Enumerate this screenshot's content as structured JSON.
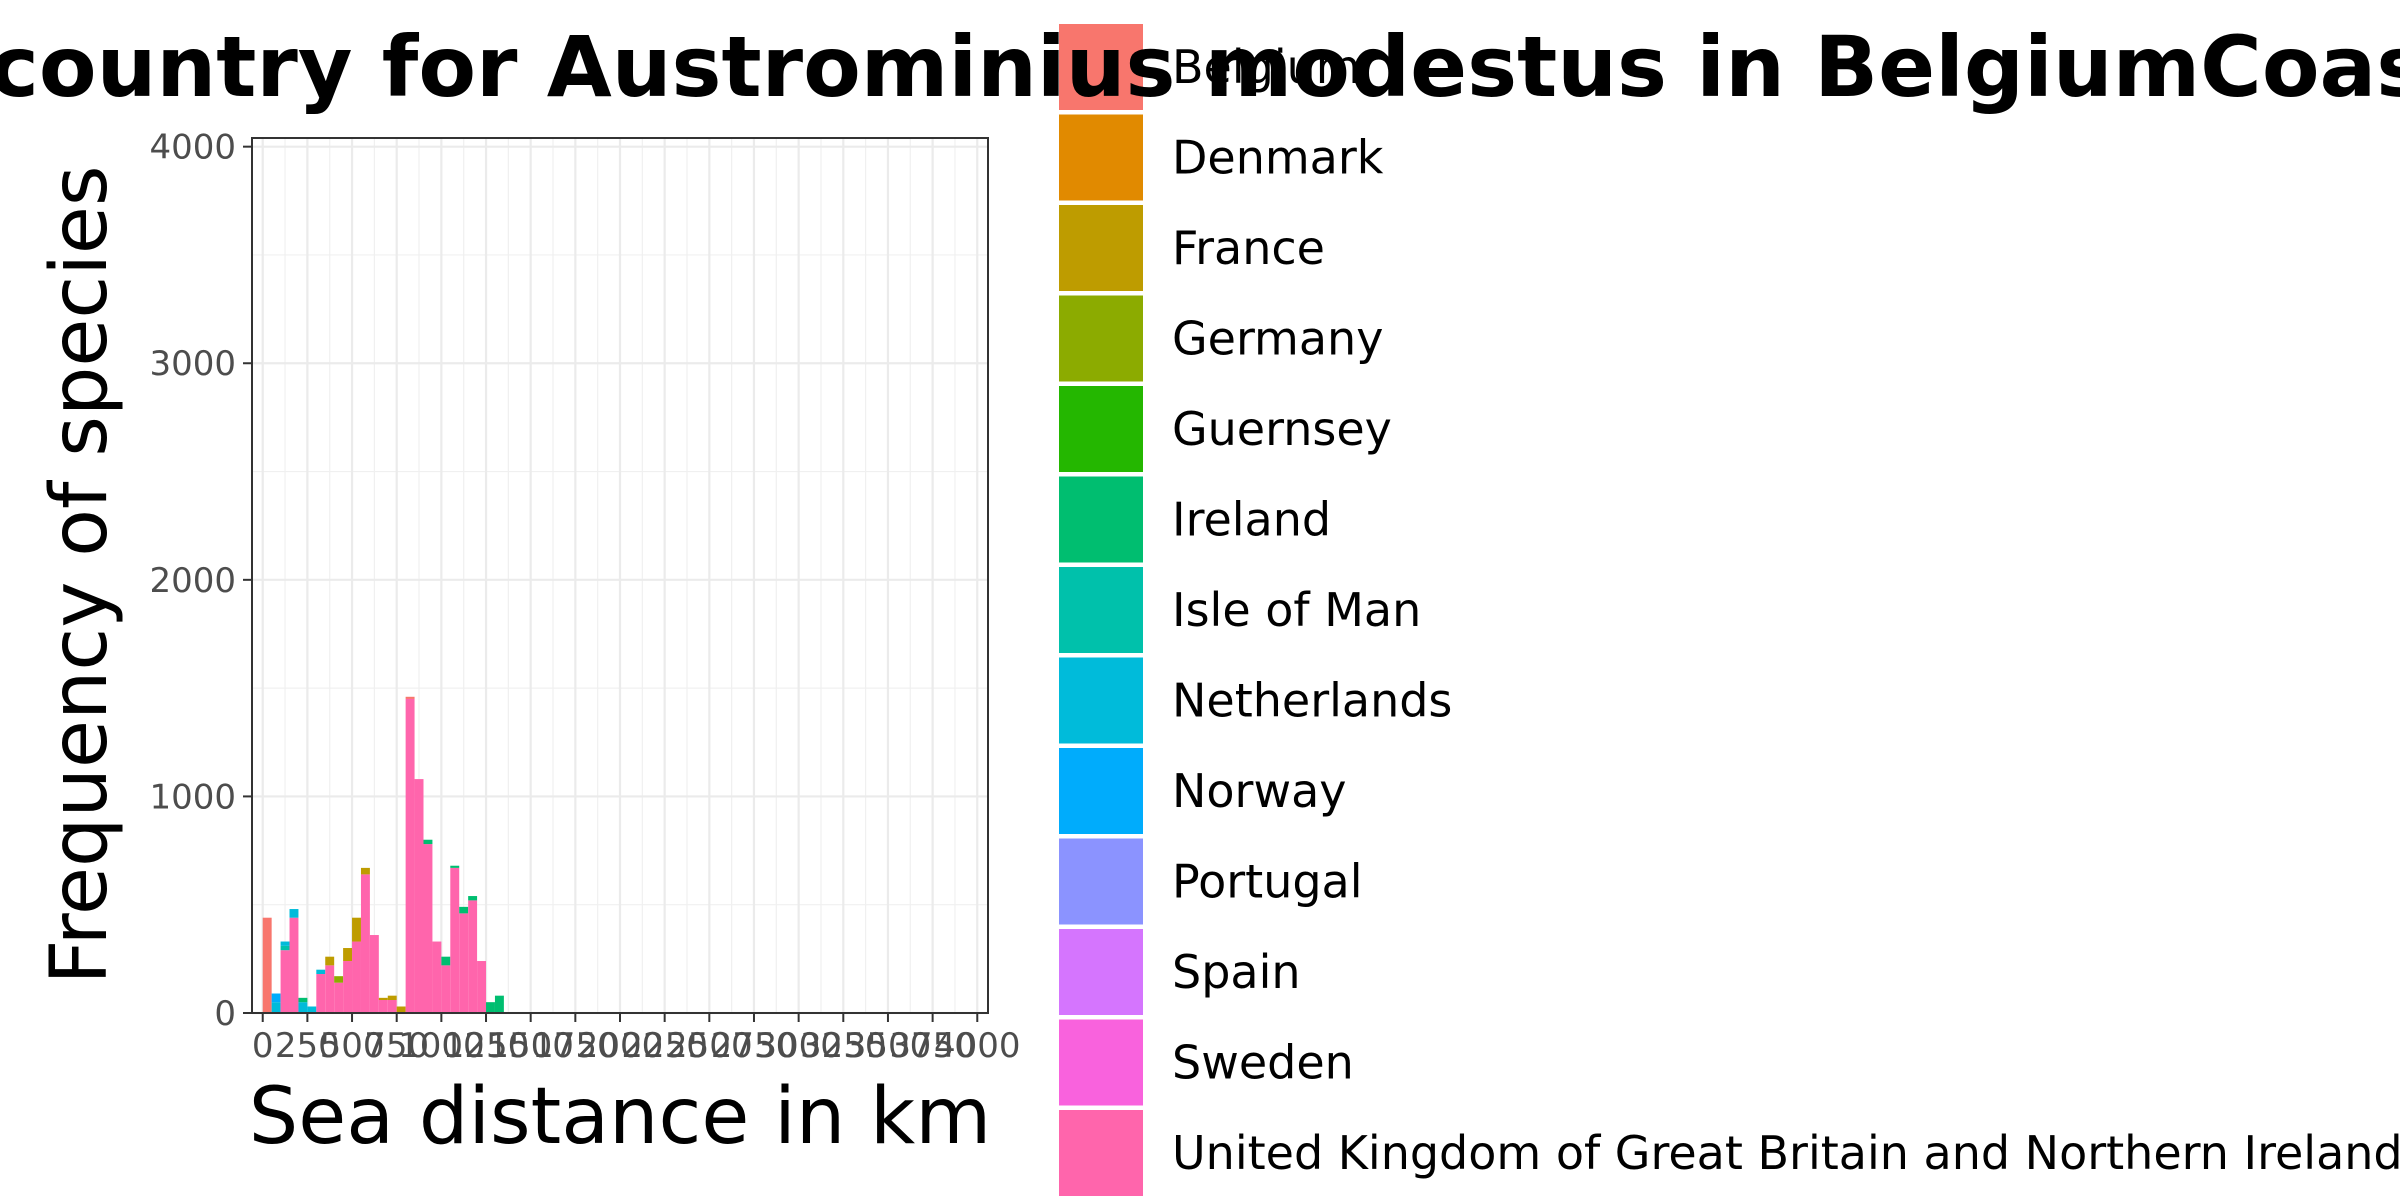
{
  "chart_data": {
    "type": "bar",
    "stacked": true,
    "title": "ces/country for Austrominius modestus in BelgiumCoast",
    "xlabel": "Sea distance in km",
    "ylabel": "Frequency of species",
    "xlim": [
      0,
      4000
    ],
    "ylim": [
      0,
      4000
    ],
    "x_ticks": [
      0,
      250,
      500,
      750,
      1000,
      1250,
      1500,
      1750,
      2000,
      2250,
      2500,
      2750,
      3000,
      3250,
      3500,
      3750,
      4000
    ],
    "y_ticks": [
      0,
      1000,
      2000,
      3000,
      4000
    ],
    "bin_width": 50,
    "grid": true,
    "legend_position": "right",
    "legend": [
      {
        "label": "Belgium",
        "color": "#F8766D"
      },
      {
        "label": "Denmark",
        "color": "#E18A00"
      },
      {
        "label": "France",
        "color": "#BE9C00"
      },
      {
        "label": "Germany",
        "color": "#8CAB00"
      },
      {
        "label": "Guernsey",
        "color": "#24B700"
      },
      {
        "label": "Ireland",
        "color": "#00BE70"
      },
      {
        "label": "Isle of Man",
        "color": "#00C1AB"
      },
      {
        "label": "Netherlands",
        "color": "#00BBDA"
      },
      {
        "label": "Norway",
        "color": "#00ACFC"
      },
      {
        "label": "Portugal",
        "color": "#8B93FF"
      },
      {
        "label": "Spain",
        "color": "#D575FE"
      },
      {
        "label": "Sweden",
        "color": "#F962DD"
      },
      {
        "label": "United Kingdom of Great Britain and Northern Ireland",
        "color": "#FF65AC"
      }
    ],
    "bins": [
      {
        "x": 25,
        "stack": [
          {
            "c": "Belgium",
            "v": 440
          }
        ]
      },
      {
        "x": 75,
        "stack": [
          {
            "c": "Netherlands",
            "v": 50
          },
          {
            "c": "Norway",
            "v": 40
          }
        ]
      },
      {
        "x": 125,
        "stack": [
          {
            "c": "United Kingdom of Great Britain and Northern Ireland",
            "v": 290
          },
          {
            "c": "Isle of Man",
            "v": 20
          },
          {
            "c": "Netherlands",
            "v": 20
          }
        ]
      },
      {
        "x": 175,
        "stack": [
          {
            "c": "United Kingdom of Great Britain and Northern Ireland",
            "v": 440
          },
          {
            "c": "Netherlands",
            "v": 40
          }
        ]
      },
      {
        "x": 225,
        "stack": [
          {
            "c": "Netherlands",
            "v": 50
          },
          {
            "c": "Ireland",
            "v": 20
          }
        ]
      },
      {
        "x": 275,
        "stack": [
          {
            "c": "Netherlands",
            "v": 30
          }
        ]
      },
      {
        "x": 325,
        "stack": [
          {
            "c": "United Kingdom of Great Britain and Northern Ireland",
            "v": 180
          },
          {
            "c": "Netherlands",
            "v": 20
          }
        ]
      },
      {
        "x": 375,
        "stack": [
          {
            "c": "United Kingdom of Great Britain and Northern Ireland",
            "v": 220
          },
          {
            "c": "France",
            "v": 40
          }
        ]
      },
      {
        "x": 425,
        "stack": [
          {
            "c": "United Kingdom of Great Britain and Northern Ireland",
            "v": 140
          },
          {
            "c": "Germany",
            "v": 30
          }
        ]
      },
      {
        "x": 475,
        "stack": [
          {
            "c": "United Kingdom of Great Britain and Northern Ireland",
            "v": 240
          },
          {
            "c": "France",
            "v": 60
          }
        ]
      },
      {
        "x": 525,
        "stack": [
          {
            "c": "United Kingdom of Great Britain and Northern Ireland",
            "v": 330
          },
          {
            "c": "France",
            "v": 110
          }
        ]
      },
      {
        "x": 575,
        "stack": [
          {
            "c": "United Kingdom of Great Britain and Northern Ireland",
            "v": 640
          },
          {
            "c": "France",
            "v": 30
          }
        ]
      },
      {
        "x": 625,
        "stack": [
          {
            "c": "United Kingdom of Great Britain and Northern Ireland",
            "v": 360
          }
        ]
      },
      {
        "x": 675,
        "stack": [
          {
            "c": "United Kingdom of Great Britain and Northern Ireland",
            "v": 60
          },
          {
            "c": "France",
            "v": 10
          }
        ]
      },
      {
        "x": 725,
        "stack": [
          {
            "c": "United Kingdom of Great Britain and Northern Ireland",
            "v": 60
          },
          {
            "c": "France",
            "v": 20
          }
        ]
      },
      {
        "x": 775,
        "stack": [
          {
            "c": "France",
            "v": 30
          }
        ]
      },
      {
        "x": 825,
        "stack": [
          {
            "c": "United Kingdom of Great Britain and Northern Ireland",
            "v": 1450
          },
          {
            "c": "Belgium",
            "v": 10
          }
        ]
      },
      {
        "x": 875,
        "stack": [
          {
            "c": "United Kingdom of Great Britain and Northern Ireland",
            "v": 1080
          }
        ]
      },
      {
        "x": 925,
        "stack": [
          {
            "c": "United Kingdom of Great Britain and Northern Ireland",
            "v": 780
          },
          {
            "c": "Ireland",
            "v": 20
          }
        ]
      },
      {
        "x": 975,
        "stack": [
          {
            "c": "United Kingdom of Great Britain and Northern Ireland",
            "v": 330
          }
        ]
      },
      {
        "x": 1025,
        "stack": [
          {
            "c": "United Kingdom of Great Britain and Northern Ireland",
            "v": 220
          },
          {
            "c": "Ireland",
            "v": 40
          }
        ]
      },
      {
        "x": 1075,
        "stack": [
          {
            "c": "United Kingdom of Great Britain and Northern Ireland",
            "v": 670
          },
          {
            "c": "Ireland",
            "v": 10
          }
        ]
      },
      {
        "x": 1125,
        "stack": [
          {
            "c": "United Kingdom of Great Britain and Northern Ireland",
            "v": 460
          },
          {
            "c": "Ireland",
            "v": 30
          }
        ]
      },
      {
        "x": 1175,
        "stack": [
          {
            "c": "United Kingdom of Great Britain and Northern Ireland",
            "v": 520
          },
          {
            "c": "Ireland",
            "v": 20
          }
        ]
      },
      {
        "x": 1225,
        "stack": [
          {
            "c": "United Kingdom of Great Britain and Northern Ireland",
            "v": 240
          }
        ]
      },
      {
        "x": 1275,
        "stack": [
          {
            "c": "Ireland",
            "v": 50
          }
        ]
      },
      {
        "x": 1325,
        "stack": [
          {
            "c": "Ireland",
            "v": 80
          }
        ]
      }
    ]
  }
}
